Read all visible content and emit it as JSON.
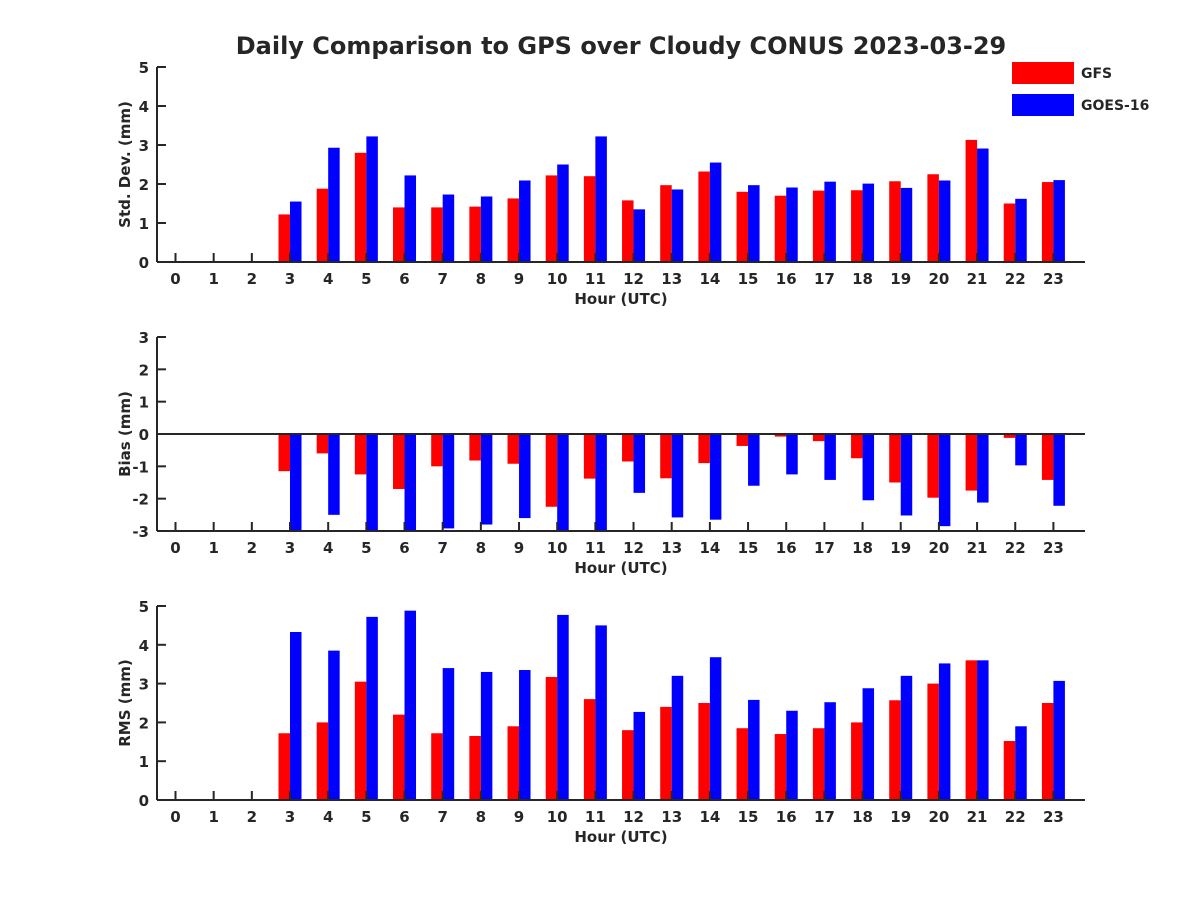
{
  "title": "Daily Comparison to GPS over Cloudy CONUS 2023-03-29",
  "legend": [
    {
      "name": "GFS",
      "color": "#ff0000"
    },
    {
      "name": "GOES-16",
      "color": "#0000ff"
    }
  ],
  "chart_data": [
    {
      "type": "bar",
      "ylabel": "Std. Dev. (mm)",
      "xlabel": "Hour (UTC)",
      "ylim": [
        0,
        5
      ],
      "yticks": [
        0,
        1,
        2,
        3,
        4,
        5
      ],
      "categories": [
        "0",
        "1",
        "2",
        "3",
        "4",
        "5",
        "6",
        "7",
        "8",
        "9",
        "10",
        "11",
        "12",
        "13",
        "14",
        "15",
        "16",
        "17",
        "18",
        "19",
        "20",
        "21",
        "22",
        "23"
      ],
      "series": [
        {
          "name": "GFS",
          "color": "#ff0000",
          "values": [
            null,
            null,
            null,
            1.22,
            1.88,
            2.8,
            1.4,
            1.4,
            1.42,
            1.63,
            2.22,
            2.2,
            1.58,
            1.97,
            2.32,
            1.8,
            1.7,
            1.83,
            1.84,
            2.07,
            2.25,
            3.13,
            1.5,
            2.05
          ]
        },
        {
          "name": "GOES-16",
          "color": "#0000ff",
          "values": [
            null,
            null,
            null,
            1.55,
            2.93,
            3.22,
            2.22,
            1.73,
            1.68,
            2.09,
            2.5,
            3.22,
            1.35,
            1.86,
            2.55,
            1.97,
            1.91,
            2.06,
            2.01,
            1.9,
            2.09,
            2.91,
            1.62,
            2.1
          ]
        }
      ]
    },
    {
      "type": "bar",
      "ylabel": "Bias (mm)",
      "xlabel": "Hour (UTC)",
      "ylim": [
        -3,
        3
      ],
      "yticks": [
        -3,
        -2,
        -1,
        0,
        1,
        2,
        3
      ],
      "categories": [
        "0",
        "1",
        "2",
        "3",
        "4",
        "5",
        "6",
        "7",
        "8",
        "9",
        "10",
        "11",
        "12",
        "13",
        "14",
        "15",
        "16",
        "17",
        "18",
        "19",
        "20",
        "21",
        "22",
        "23"
      ],
      "series": [
        {
          "name": "GFS",
          "color": "#ff0000",
          "values": [
            null,
            null,
            null,
            -1.15,
            -0.6,
            -1.25,
            -1.7,
            -1.0,
            -0.82,
            -0.92,
            -2.25,
            -1.38,
            -0.85,
            -1.37,
            -0.9,
            -0.37,
            -0.08,
            -0.22,
            -0.75,
            -1.5,
            -1.97,
            -1.75,
            -0.12,
            -1.42
          ]
        },
        {
          "name": "GOES-16",
          "color": "#0000ff",
          "values": [
            null,
            null,
            null,
            -3.0,
            -2.5,
            -3.0,
            -3.0,
            -2.92,
            -2.8,
            -2.6,
            -3.0,
            -3.0,
            -1.82,
            -2.58,
            -2.65,
            -1.6,
            -1.25,
            -1.42,
            -2.05,
            -2.52,
            -2.85,
            -2.12,
            -0.97,
            -2.22
          ]
        }
      ]
    },
    {
      "type": "bar",
      "ylabel": "RMS (mm)",
      "xlabel": "Hour (UTC)",
      "ylim": [
        0,
        5
      ],
      "yticks": [
        0,
        1,
        2,
        3,
        4,
        5
      ],
      "categories": [
        "0",
        "1",
        "2",
        "3",
        "4",
        "5",
        "6",
        "7",
        "8",
        "9",
        "10",
        "11",
        "12",
        "13",
        "14",
        "15",
        "16",
        "17",
        "18",
        "19",
        "20",
        "21",
        "22",
        "23"
      ],
      "series": [
        {
          "name": "GFS",
          "color": "#ff0000",
          "values": [
            null,
            null,
            null,
            1.72,
            2.0,
            3.05,
            2.2,
            1.72,
            1.65,
            1.9,
            3.17,
            2.6,
            1.8,
            2.4,
            2.5,
            1.85,
            1.7,
            1.85,
            2.0,
            2.57,
            3.0,
            3.6,
            1.52,
            2.5
          ]
        },
        {
          "name": "GOES-16",
          "color": "#0000ff",
          "values": [
            null,
            null,
            null,
            4.33,
            3.85,
            4.72,
            4.88,
            3.4,
            3.3,
            3.35,
            4.77,
            4.5,
            2.27,
            3.2,
            3.68,
            2.58,
            2.3,
            2.52,
            2.88,
            3.2,
            3.52,
            3.6,
            1.9,
            3.07
          ]
        }
      ]
    }
  ]
}
